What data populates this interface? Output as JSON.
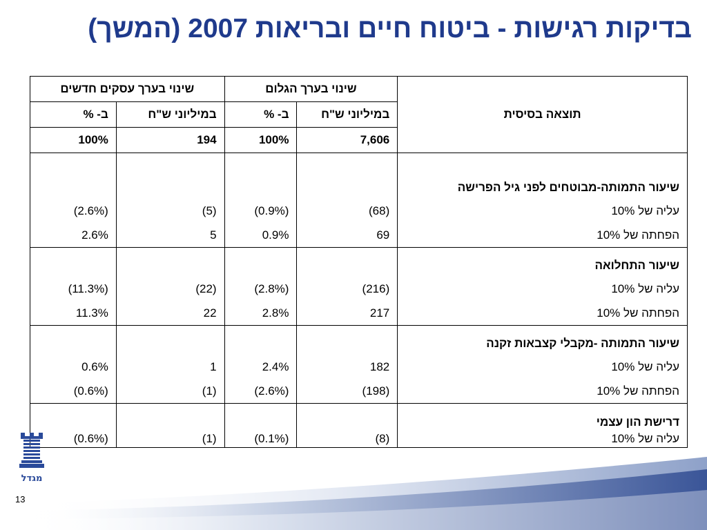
{
  "slide": {
    "title": "בדיקות רגישות - ביטוח חיים ובריאות 2007 (המשך)",
    "page_number": "13",
    "logo_text": "מגדל"
  },
  "table": {
    "headers": {
      "base_result": "תוצאה בסיסית",
      "group_embedded": "שינוי בערך הגלום",
      "group_new_business": "שינוי בערך עסקים חדשים",
      "col_millions": "במיליוני ש\"ח",
      "col_percent": "ב- %"
    },
    "base_row": {
      "embedded_millions": "7,606",
      "embedded_percent": "100%",
      "new_business_millions": "194",
      "new_business_percent": "100%"
    },
    "sections": [
      {
        "title": "שיעור התמותה-מבוטחים לפני גיל הפרישה",
        "rows": [
          {
            "label": "עליה של 10%",
            "embedded_millions": "(68)",
            "embedded_percent": "(0.9%)",
            "new_business_millions": "(5)",
            "new_business_percent": "(2.6%)"
          },
          {
            "label": "הפחתה של 10%",
            "embedded_millions": "69",
            "embedded_percent": "0.9%",
            "new_business_millions": "5",
            "new_business_percent": "2.6%"
          }
        ]
      },
      {
        "title": "שיעור התחלואה",
        "rows": [
          {
            "label": "עליה של 10%",
            "embedded_millions": "(216)",
            "embedded_percent": "(2.8%)",
            "new_business_millions": "(22)",
            "new_business_percent": "(11.3%)"
          },
          {
            "label": "הפחתה של 10%",
            "embedded_millions": "217",
            "embedded_percent": "2.8%",
            "new_business_millions": "22",
            "new_business_percent": "11.3%"
          }
        ]
      },
      {
        "title": "שיעור התמותה -מקבלי קצבאות זקנה",
        "rows": [
          {
            "label": "עליה של 10%",
            "embedded_millions": "182",
            "embedded_percent": "2.4%",
            "new_business_millions": "1",
            "new_business_percent": "0.6%"
          },
          {
            "label": "הפחתה של 10%",
            "embedded_millions": "(198)",
            "embedded_percent": "(2.6%)",
            "new_business_millions": "(1)",
            "new_business_percent": "(0.6%)"
          }
        ]
      },
      {
        "title": "דרישת הון עצמי",
        "rows": [
          {
            "label": "עליה של 10%",
            "embedded_millions": "(8)",
            "embedded_percent": "(0.1%)",
            "new_business_millions": "(1)",
            "new_business_percent": "(0.6%)"
          }
        ]
      }
    ]
  },
  "colors": {
    "title": "#1f3a8c",
    "logo": "#2a4a9a",
    "swoosh_dark": "#3a5598",
    "swoosh_light": "#c9d3e6"
  }
}
